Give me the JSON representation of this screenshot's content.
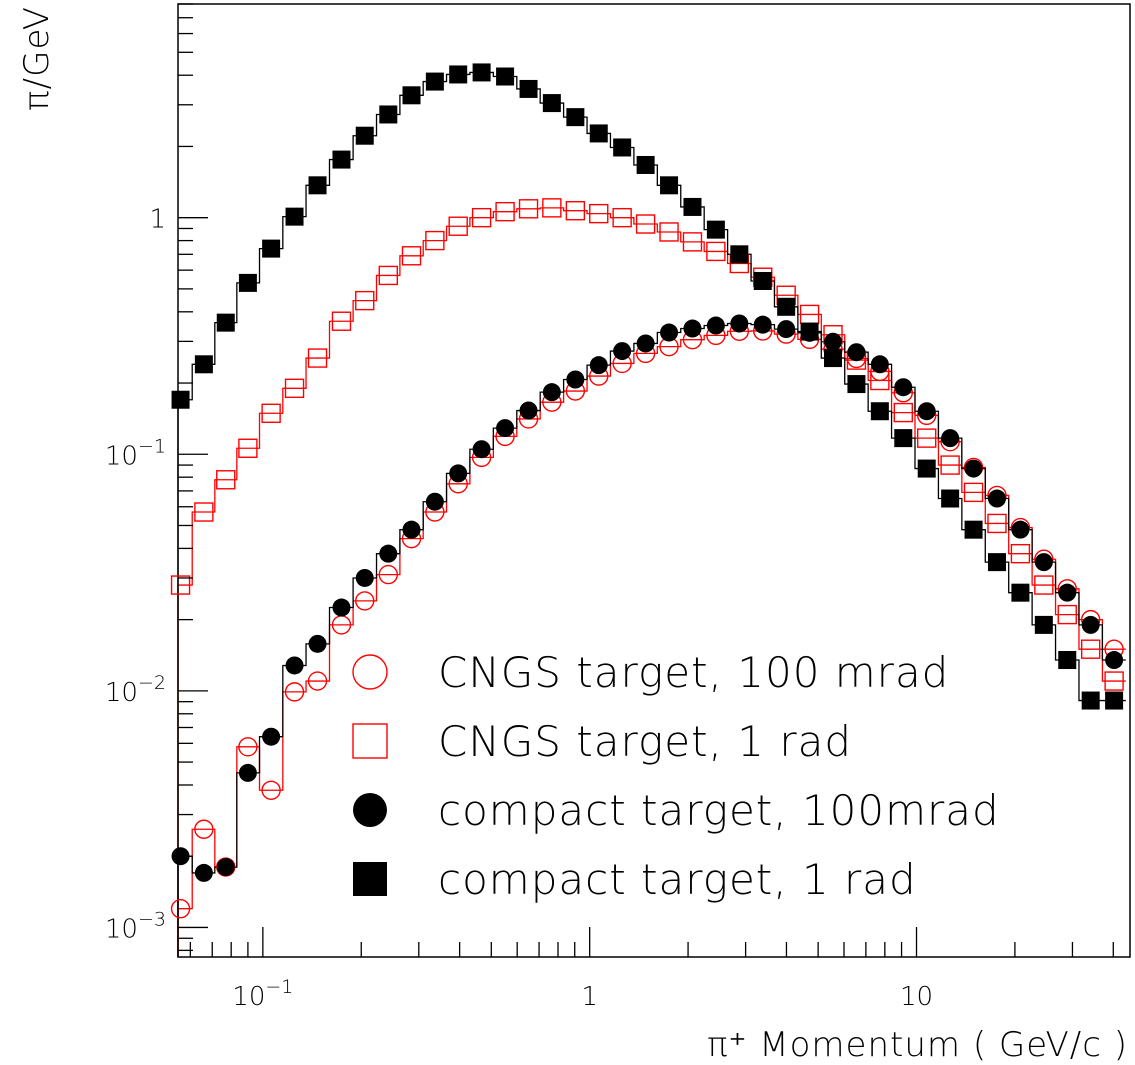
{
  "chart_data": {
    "type": "scatter",
    "xscale": "log",
    "yscale": "log",
    "xlim": [
      0.055,
      45
    ],
    "ylim": [
      0.00075,
      8
    ],
    "xlabel": "π⁺ Momentum ( GeV/c )",
    "ylabel": "π/GeV",
    "x_ticks": [
      {
        "value": 0.1,
        "base": "10",
        "exp": "−1"
      },
      {
        "value": 1,
        "base": "1",
        "exp": ""
      },
      {
        "value": 10,
        "base": "10",
        "exp": ""
      }
    ],
    "y_ticks": [
      {
        "value": 0.001,
        "base": "10",
        "exp": "−3"
      },
      {
        "value": 0.01,
        "base": "10",
        "exp": "−2"
      },
      {
        "value": 0.1,
        "base": "10",
        "exp": "−1"
      },
      {
        "value": 1,
        "base": "1",
        "exp": ""
      }
    ],
    "x": [
      0.056,
      0.066,
      0.077,
      0.09,
      0.106,
      0.125,
      0.147,
      0.174,
      0.205,
      0.242,
      0.285,
      0.336,
      0.396,
      0.467,
      0.551,
      0.65,
      0.766,
      0.904,
      1.066,
      1.257,
      1.483,
      1.749,
      2.063,
      2.433,
      2.87,
      3.385,
      3.992,
      4.708,
      5.553,
      6.549,
      7.724,
      9.11,
      10.745,
      12.673,
      14.947,
      17.629,
      20.792,
      24.523,
      28.923,
      34.112,
      40.233
    ],
    "series": [
      {
        "name": "CNGS target, 100 mrad",
        "marker": "open-circle",
        "color": "#ff0000",
        "values": [
          0.0012,
          0.0026,
          0.0018,
          0.0058,
          0.0038,
          0.0099,
          0.011,
          0.019,
          0.024,
          0.031,
          0.044,
          0.057,
          0.075,
          0.097,
          0.119,
          0.141,
          0.166,
          0.185,
          0.214,
          0.242,
          0.267,
          0.285,
          0.305,
          0.318,
          0.331,
          0.332,
          0.322,
          0.306,
          0.278,
          0.254,
          0.224,
          0.182,
          0.146,
          0.113,
          0.088,
          0.067,
          0.049,
          0.036,
          0.027,
          0.02,
          0.015
        ]
      },
      {
        "name": "CNGS target,  1 rad",
        "marker": "open-square",
        "color": "#ff0000",
        "values": [
          0.028,
          0.057,
          0.078,
          0.106,
          0.149,
          0.19,
          0.255,
          0.365,
          0.446,
          0.57,
          0.69,
          0.8,
          0.92,
          1.0,
          1.06,
          1.09,
          1.1,
          1.07,
          1.04,
          1.0,
          0.94,
          0.87,
          0.79,
          0.72,
          0.64,
          0.56,
          0.47,
          0.39,
          0.32,
          0.25,
          0.205,
          0.15,
          0.117,
          0.09,
          0.069,
          0.051,
          0.038,
          0.028,
          0.021,
          0.015,
          0.011
        ]
      },
      {
        "name": "compact target, 100mrad",
        "marker": "filled-circle",
        "color": "#000000",
        "values": [
          0.002,
          0.0017,
          0.0018,
          0.0045,
          0.0064,
          0.0128,
          0.0158,
          0.0225,
          0.03,
          0.038,
          0.048,
          0.063,
          0.083,
          0.105,
          0.129,
          0.153,
          0.183,
          0.207,
          0.238,
          0.273,
          0.294,
          0.327,
          0.34,
          0.35,
          0.357,
          0.353,
          0.338,
          0.326,
          0.299,
          0.27,
          0.24,
          0.192,
          0.152,
          0.117,
          0.087,
          0.065,
          0.048,
          0.035,
          0.026,
          0.019,
          0.0135
        ]
      },
      {
        "name": "compact target,  1 rad",
        "marker": "filled-square",
        "color": "#000000",
        "values": [
          0.17,
          0.24,
          0.36,
          0.53,
          0.74,
          1.01,
          1.37,
          1.76,
          2.22,
          2.73,
          3.29,
          3.76,
          4.03,
          4.11,
          3.95,
          3.5,
          3.05,
          2.66,
          2.27,
          1.98,
          1.67,
          1.37,
          1.11,
          0.89,
          0.7,
          0.54,
          0.42,
          0.33,
          0.255,
          0.198,
          0.152,
          0.117,
          0.087,
          0.065,
          0.048,
          0.035,
          0.026,
          0.019,
          0.0135,
          0.0091,
          0.0091
        ]
      }
    ],
    "legend_placement": "bottom-right",
    "grid": false
  }
}
